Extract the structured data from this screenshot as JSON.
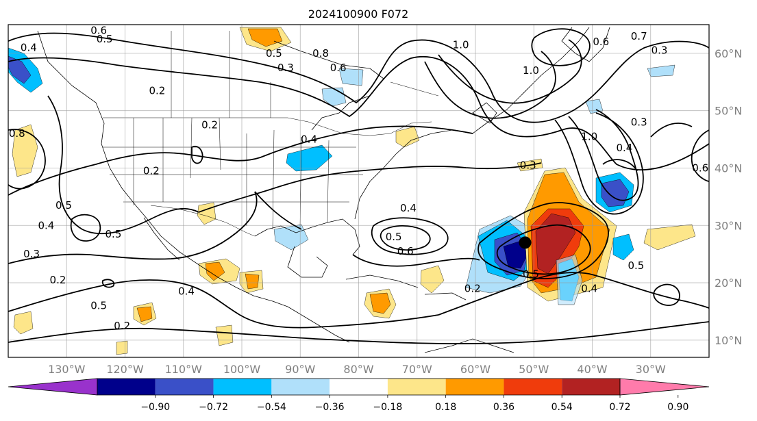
{
  "chart_data": {
    "type": "map-contour",
    "title": "2024100900 F072",
    "map_extent": {
      "lon": [
        -140,
        -20
      ],
      "lat": [
        7,
        65
      ]
    },
    "lon_ticks": [
      {
        "value": -130,
        "label": "130°W"
      },
      {
        "value": -120,
        "label": "120°W"
      },
      {
        "value": -110,
        "label": "110°W"
      },
      {
        "value": -100,
        "label": "100°W"
      },
      {
        "value": -90,
        "label": "90°W"
      },
      {
        "value": -80,
        "label": "80°W"
      },
      {
        "value": -70,
        "label": "70°W"
      },
      {
        "value": -60,
        "label": "60°W"
      },
      {
        "value": -50,
        "label": "50°W"
      },
      {
        "value": -40,
        "label": "40°W"
      },
      {
        "value": -30,
        "label": "30°W"
      }
    ],
    "lat_ticks": [
      {
        "value": 60,
        "label": "60°N"
      },
      {
        "value": 50,
        "label": "50°N"
      },
      {
        "value": 40,
        "label": "40°N"
      },
      {
        "value": 30,
        "label": "30°N"
      },
      {
        "value": 20,
        "label": "20°N"
      },
      {
        "value": 10,
        "label": "10°N"
      }
    ],
    "grid": true,
    "contour_labels": [
      {
        "text": "0.4",
        "lon": -136.5,
        "lat": 61.0
      },
      {
        "text": "0.5",
        "lon": -123.5,
        "lat": 62.5
      },
      {
        "text": "0.6",
        "lon": -124.5,
        "lat": 64.0
      },
      {
        "text": "0.2",
        "lon": -114.5,
        "lat": 53.5
      },
      {
        "text": "0.2",
        "lon": -105.5,
        "lat": 47.5
      },
      {
        "text": "0.5",
        "lon": -94.5,
        "lat": 60.0
      },
      {
        "text": "0.3",
        "lon": -92.5,
        "lat": 57.5
      },
      {
        "text": "0.8",
        "lon": -86.5,
        "lat": 60.0
      },
      {
        "text": "0.6",
        "lon": -83.5,
        "lat": 57.5
      },
      {
        "text": "1.0",
        "lon": -62.5,
        "lat": 61.5
      },
      {
        "text": "1.0",
        "lon": -50.5,
        "lat": 57.0
      },
      {
        "text": "0.7",
        "lon": -32.0,
        "lat": 63.0
      },
      {
        "text": "0.6",
        "lon": -38.5,
        "lat": 62.0
      },
      {
        "text": "0.3",
        "lon": -28.5,
        "lat": 60.5
      },
      {
        "text": "0.3",
        "lon": -32.0,
        "lat": 48.0
      },
      {
        "text": "0.4",
        "lon": -34.5,
        "lat": 43.5
      },
      {
        "text": "1.0",
        "lon": -40.5,
        "lat": 45.5
      },
      {
        "text": "0.4",
        "lon": -88.5,
        "lat": 45.0
      },
      {
        "text": "0.3",
        "lon": -51.0,
        "lat": 40.5
      },
      {
        "text": "0.2",
        "lon": -115.5,
        "lat": 39.5
      },
      {
        "text": "0.8",
        "lon": -138.5,
        "lat": 46.0
      },
      {
        "text": "0.5",
        "lon": -130.5,
        "lat": 33.5
      },
      {
        "text": "0.4",
        "lon": -133.5,
        "lat": 30.0
      },
      {
        "text": "0.5",
        "lon": -122.0,
        "lat": 28.5
      },
      {
        "text": "0.3",
        "lon": -136.0,
        "lat": 25.0
      },
      {
        "text": "0.2",
        "lon": -131.5,
        "lat": 20.5
      },
      {
        "text": "0.5",
        "lon": -124.5,
        "lat": 16.0
      },
      {
        "text": "0.2",
        "lon": -120.5,
        "lat": 12.5
      },
      {
        "text": "0.4",
        "lon": -109.5,
        "lat": 18.5
      },
      {
        "text": "0.4",
        "lon": -71.5,
        "lat": 33.0
      },
      {
        "text": "0.5",
        "lon": -74.0,
        "lat": 28.0
      },
      {
        "text": "0.6",
        "lon": -72.0,
        "lat": 25.5
      },
      {
        "text": "0.2",
        "lon": -60.5,
        "lat": 19.0
      },
      {
        "text": "0.5",
        "lon": -50.5,
        "lat": 21.5
      },
      {
        "text": "0.4",
        "lon": -40.5,
        "lat": 19.0
      },
      {
        "text": "0.5",
        "lon": -32.5,
        "lat": 23.0
      },
      {
        "text": "0.6",
        "lon": -21.5,
        "lat": 40.0
      }
    ],
    "colorbar": {
      "ticks": [
        "−0.90",
        "−0.72",
        "−0.54",
        "−0.36",
        "−0.18",
        "0.18",
        "0.36",
        "0.54",
        "0.72",
        "0.90"
      ],
      "colors": [
        "#9932cc",
        "#00008b",
        "#3a50c8",
        "#00bfff",
        "#b0e0fa",
        "#ffffff",
        "#fde68a",
        "#ff9a00",
        "#f03c0c",
        "#b22222",
        "#ff7bab"
      ]
    },
    "marker": {
      "lon": -51.5,
      "lat": 27.0
    }
  }
}
